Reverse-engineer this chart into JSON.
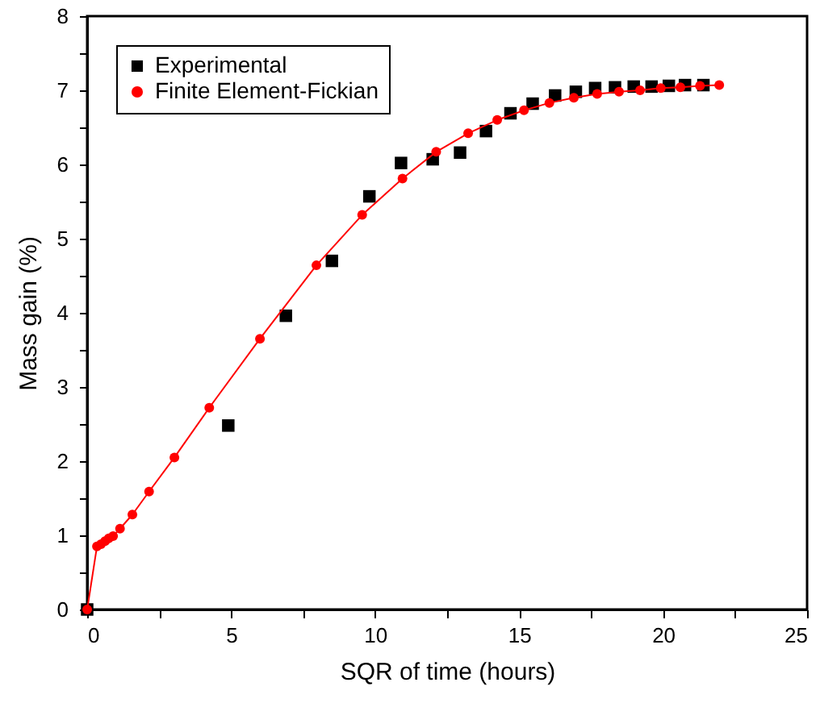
{
  "chart_data": {
    "type": "scatter",
    "xlabel": "SQR of time (hours)",
    "ylabel": "Mass gain (%)",
    "xlim": [
      0,
      25
    ],
    "xticks": [
      0,
      {
        "value": 2.5,
        "label": null
      },
      5,
      {
        "value": 7.5,
        "label": null
      },
      10,
      {
        "value": 12.5,
        "label": null
      },
      15,
      {
        "value": 17.5,
        "label": null
      },
      20,
      {
        "value": 22.5,
        "label": null
      },
      25
    ],
    "ylim": [
      0,
      8
    ],
    "yticks": [
      0,
      {
        "value": 0.5,
        "label": null
      },
      1,
      {
        "value": 1.5,
        "label": null
      },
      2,
      {
        "value": 2.5,
        "label": null
      },
      3,
      {
        "value": 3.5,
        "label": null
      },
      4,
      {
        "value": 4.5,
        "label": null
      },
      5,
      {
        "value": 5.5,
        "label": null
      },
      6,
      {
        "value": 6.5,
        "label": null
      },
      7,
      {
        "value": 7.5,
        "label": null
      },
      8
    ],
    "grid": false,
    "legend": "top left",
    "series": [
      {
        "name": "Experimental",
        "type": "scatter",
        "marker": "square",
        "color": "#000000",
        "x": [
          0,
          4.9,
          6.9,
          8.5,
          9.8,
          10.9,
          12.0,
          12.95,
          13.85,
          14.7,
          15.47,
          16.25,
          16.97,
          17.64,
          18.33,
          18.98,
          19.6,
          20.2,
          20.76,
          21.4
        ],
        "values": [
          0,
          2.48,
          3.96,
          4.7,
          5.57,
          6.02,
          6.07,
          6.16,
          6.45,
          6.69,
          6.82,
          6.93,
          6.98,
          7.03,
          7.04,
          7.05,
          7.05,
          7.06,
          7.07,
          7.07
        ]
      },
      {
        "name": "Finite Element-Fickian",
        "type": "line",
        "marker": "circle",
        "line_style": "solid",
        "color": "#ff0000",
        "x": [
          0,
          0.34,
          0.48,
          0.62,
          0.75,
          0.9,
          1.14,
          1.57,
          2.15,
          3.03,
          4.24,
          6.0,
          7.96,
          9.55,
          10.95,
          12.12,
          13.23,
          14.24,
          15.17,
          16.05,
          16.9,
          17.71,
          18.47,
          19.2,
          19.92,
          20.6,
          21.28,
          21.95
        ],
        "values": [
          0,
          0.85,
          0.88,
          0.92,
          0.96,
          0.99,
          1.09,
          1.28,
          1.59,
          2.05,
          2.72,
          3.65,
          4.64,
          5.32,
          5.81,
          6.17,
          6.42,
          6.6,
          6.73,
          6.83,
          6.9,
          6.95,
          6.98,
          7.0,
          7.03,
          7.04,
          7.06,
          7.07
        ]
      }
    ]
  }
}
